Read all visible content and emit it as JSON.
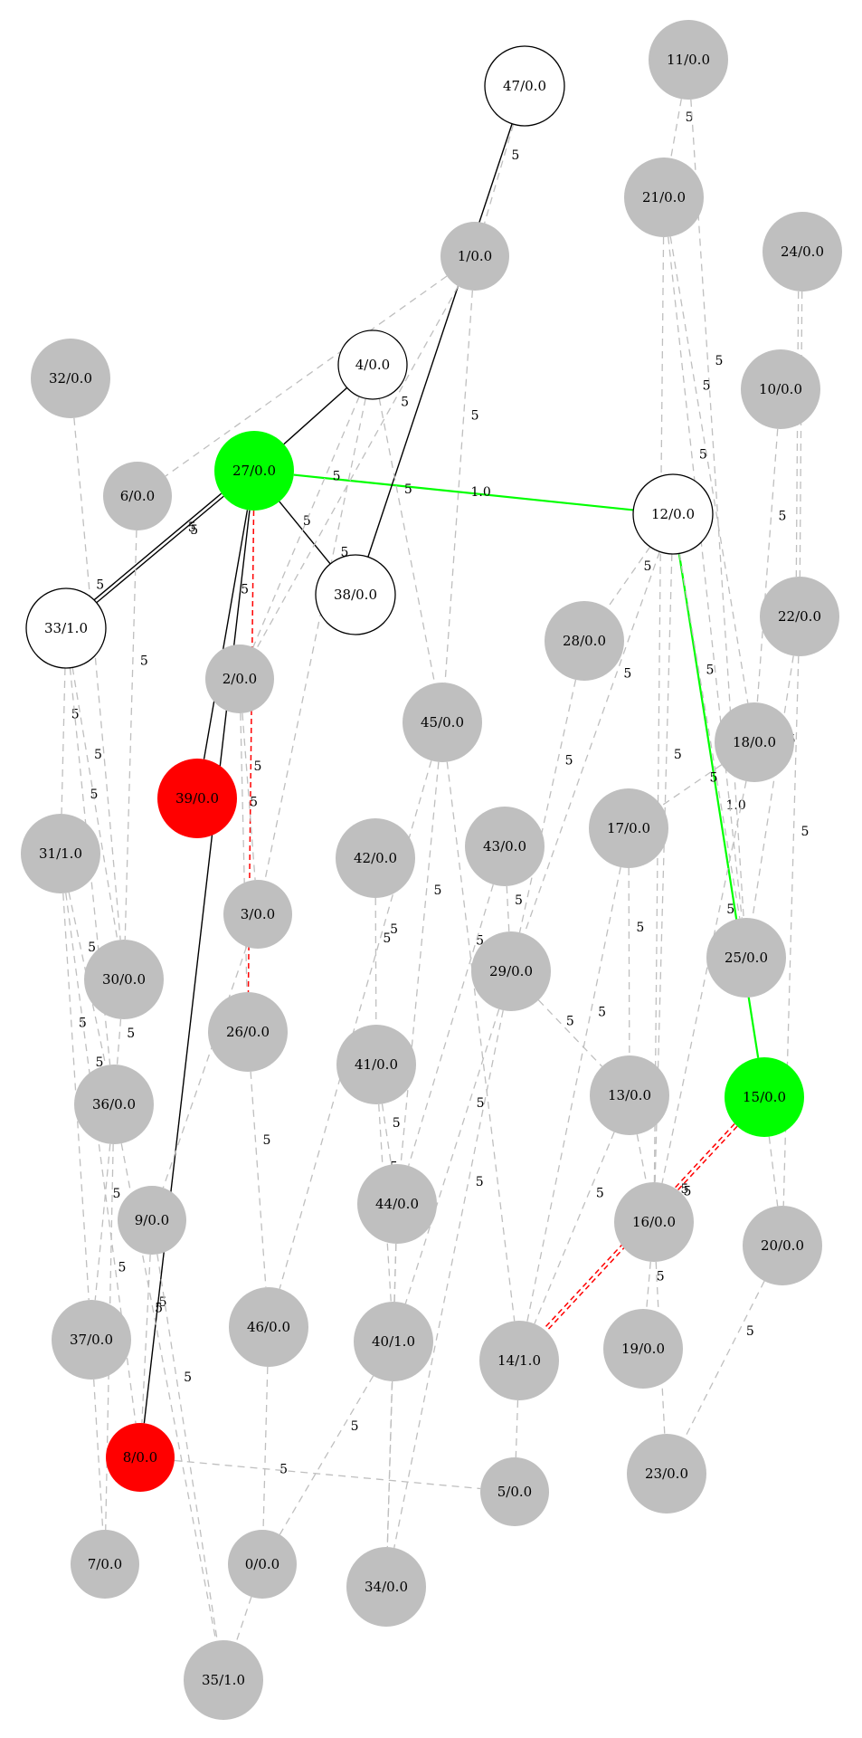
{
  "colors": {
    "gray": "#bfbfbf",
    "red": "#ff0000",
    "green": "#00ff00",
    "white": "#ffffff",
    "black": "#000000",
    "edge_gray": "#bfbfbf"
  },
  "nodes": [
    {
      "id": "0",
      "label": "0/0.0",
      "fill": "gray"
    },
    {
      "id": "1",
      "label": "1/0.0",
      "fill": "gray"
    },
    {
      "id": "2",
      "label": "2/0.0",
      "fill": "gray"
    },
    {
      "id": "3",
      "label": "3/0.0",
      "fill": "gray"
    },
    {
      "id": "4",
      "label": "4/0.0",
      "fill": "white"
    },
    {
      "id": "5",
      "label": "5/0.0",
      "fill": "gray"
    },
    {
      "id": "6",
      "label": "6/0.0",
      "fill": "gray"
    },
    {
      "id": "7",
      "label": "7/0.0",
      "fill": "gray"
    },
    {
      "id": "8",
      "label": "8/0.0",
      "fill": "red"
    },
    {
      "id": "9",
      "label": "9/0.0",
      "fill": "gray"
    },
    {
      "id": "10",
      "label": "10/0.0",
      "fill": "gray"
    },
    {
      "id": "11",
      "label": "11/0.0",
      "fill": "gray"
    },
    {
      "id": "12",
      "label": "12/0.0",
      "fill": "white"
    },
    {
      "id": "13",
      "label": "13/0.0",
      "fill": "gray"
    },
    {
      "id": "14",
      "label": "14/1.0",
      "fill": "gray"
    },
    {
      "id": "15",
      "label": "15/0.0",
      "fill": "green"
    },
    {
      "id": "16",
      "label": "16/0.0",
      "fill": "gray"
    },
    {
      "id": "17",
      "label": "17/0.0",
      "fill": "gray"
    },
    {
      "id": "18",
      "label": "18/0.0",
      "fill": "gray"
    },
    {
      "id": "19",
      "label": "19/0.0",
      "fill": "gray"
    },
    {
      "id": "20",
      "label": "20/0.0",
      "fill": "gray"
    },
    {
      "id": "21",
      "label": "21/0.0",
      "fill": "gray"
    },
    {
      "id": "22",
      "label": "22/0.0",
      "fill": "gray"
    },
    {
      "id": "23",
      "label": "23/0.0",
      "fill": "gray"
    },
    {
      "id": "24",
      "label": "24/0.0",
      "fill": "gray"
    },
    {
      "id": "25",
      "label": "25/0.0",
      "fill": "gray"
    },
    {
      "id": "26",
      "label": "26/0.0",
      "fill": "gray"
    },
    {
      "id": "27",
      "label": "27/0.0",
      "fill": "green"
    },
    {
      "id": "28",
      "label": "28/0.0",
      "fill": "gray"
    },
    {
      "id": "29",
      "label": "29/0.0",
      "fill": "gray"
    },
    {
      "id": "30",
      "label": "30/0.0",
      "fill": "gray"
    },
    {
      "id": "31",
      "label": "31/1.0",
      "fill": "gray"
    },
    {
      "id": "32",
      "label": "32/0.0",
      "fill": "gray"
    },
    {
      "id": "33",
      "label": "33/1.0",
      "fill": "white"
    },
    {
      "id": "34",
      "label": "34/0.0",
      "fill": "gray"
    },
    {
      "id": "35",
      "label": "35/1.0",
      "fill": "gray"
    },
    {
      "id": "36",
      "label": "36/0.0",
      "fill": "gray"
    },
    {
      "id": "37",
      "label": "37/0.0",
      "fill": "gray"
    },
    {
      "id": "38",
      "label": "38/0.0",
      "fill": "white"
    },
    {
      "id": "39",
      "label": "39/0.0",
      "fill": "red"
    },
    {
      "id": "40",
      "label": "40/1.0",
      "fill": "gray"
    },
    {
      "id": "41",
      "label": "41/0.0",
      "fill": "gray"
    },
    {
      "id": "42",
      "label": "42/0.0",
      "fill": "gray"
    },
    {
      "id": "43",
      "label": "43/0.0",
      "fill": "gray"
    },
    {
      "id": "44",
      "label": "44/0.0",
      "fill": "gray"
    },
    {
      "id": "45",
      "label": "45/0.0",
      "fill": "gray"
    },
    {
      "id": "46",
      "label": "46/0.0",
      "fill": "gray"
    },
    {
      "id": "47",
      "label": "47/0.0",
      "fill": "white"
    }
  ],
  "edges": [
    {
      "source": "27",
      "target": "12",
      "style": "green",
      "label": "1.0"
    },
    {
      "source": "12",
      "target": "15",
      "style": "green",
      "label": "1.0"
    },
    {
      "source": "27",
      "target": "4",
      "style": "black",
      "label": ""
    },
    {
      "source": "27",
      "target": "38",
      "style": "black",
      "label": "5"
    },
    {
      "source": "27",
      "target": "33",
      "style": "black",
      "label": "5"
    },
    {
      "source": "27",
      "target": "33",
      "style": "black",
      "label": "5"
    },
    {
      "source": "27",
      "target": "39",
      "style": "black",
      "label": "5"
    },
    {
      "source": "27",
      "target": "8",
      "style": "black",
      "label": "5"
    },
    {
      "source": "47",
      "target": "38",
      "style": "black",
      "label": "5"
    },
    {
      "source": "27",
      "target": "26",
      "style": "red",
      "label": "5"
    },
    {
      "source": "15",
      "target": "14",
      "style": "red",
      "label": "5"
    },
    {
      "source": "15",
      "target": "14",
      "style": "red",
      "label": "5"
    },
    {
      "source": "11",
      "target": "21",
      "style": "gray",
      "label": "5"
    },
    {
      "source": "11",
      "target": "25",
      "style": "gray",
      "label": "5"
    },
    {
      "source": "21",
      "target": "25",
      "style": "gray",
      "label": "5"
    },
    {
      "source": "21",
      "target": "18",
      "style": "gray",
      "label": "5"
    },
    {
      "source": "21",
      "target": "16",
      "style": "gray",
      "label": "5"
    },
    {
      "source": "24",
      "target": "22",
      "style": "gray",
      "label": "5"
    },
    {
      "source": "24",
      "target": "22",
      "style": "gray",
      "label": "5"
    },
    {
      "source": "10",
      "target": "18",
      "style": "gray",
      "label": "5"
    },
    {
      "source": "22",
      "target": "25",
      "style": "gray",
      "label": "5"
    },
    {
      "source": "22",
      "target": "20",
      "style": "gray",
      "label": "5"
    },
    {
      "source": "47",
      "target": "1",
      "style": "gray",
      "label": "5"
    },
    {
      "source": "1",
      "target": "6",
      "style": "gray",
      "label": "5"
    },
    {
      "source": "1",
      "target": "2",
      "style": "gray",
      "label": "5"
    },
    {
      "source": "1",
      "target": "45",
      "style": "gray",
      "label": "5"
    },
    {
      "source": "4",
      "target": "2",
      "style": "gray",
      "label": "5"
    },
    {
      "source": "4",
      "target": "3",
      "style": "gray",
      "label": "5"
    },
    {
      "source": "4",
      "target": "45",
      "style": "gray",
      "label": "5"
    },
    {
      "source": "32",
      "target": "30",
      "style": "gray",
      "label": "5"
    },
    {
      "source": "6",
      "target": "30",
      "style": "gray",
      "label": "5"
    },
    {
      "source": "33",
      "target": "31",
      "style": "gray",
      "label": "5"
    },
    {
      "source": "33",
      "target": "30",
      "style": "gray",
      "label": "5"
    },
    {
      "source": "33",
      "target": "36",
      "style": "gray",
      "label": "5"
    },
    {
      "source": "31",
      "target": "36",
      "style": "gray",
      "label": "5"
    },
    {
      "source": "31",
      "target": "37",
      "style": "gray",
      "label": "5"
    },
    {
      "source": "31",
      "target": "8",
      "style": "gray",
      "label": "5"
    },
    {
      "source": "30",
      "target": "36",
      "style": "gray",
      "label": "5"
    },
    {
      "source": "36",
      "target": "37",
      "style": "gray",
      "label": "5"
    },
    {
      "source": "36",
      "target": "7",
      "style": "gray",
      "label": "5"
    },
    {
      "source": "36",
      "target": "35",
      "style": "gray",
      "label": "5"
    },
    {
      "source": "9",
      "target": "8",
      "style": "gray",
      "label": "5"
    },
    {
      "source": "9",
      "target": "35",
      "style": "gray",
      "label": "5"
    },
    {
      "source": "2",
      "target": "3",
      "style": "gray",
      "label": "5"
    },
    {
      "source": "2",
      "target": "26",
      "style": "gray",
      "label": "5"
    },
    {
      "source": "3",
      "target": "9",
      "style": "gray",
      "label": "5"
    },
    {
      "source": "26",
      "target": "46",
      "style": "gray",
      "label": "5"
    },
    {
      "source": "46",
      "target": "0",
      "style": "gray",
      "label": ""
    },
    {
      "source": "0",
      "target": "35",
      "style": "gray",
      "label": ""
    },
    {
      "source": "8",
      "target": "5",
      "style": "gray",
      "label": "5"
    },
    {
      "source": "45",
      "target": "44",
      "style": "gray",
      "label": "5"
    },
    {
      "source": "45",
      "target": "46",
      "style": "gray",
      "label": "5"
    },
    {
      "source": "45",
      "target": "14",
      "style": "gray",
      "label": "5"
    },
    {
      "source": "42",
      "target": "41",
      "style": "gray",
      "label": "5"
    },
    {
      "source": "41",
      "target": "44",
      "style": "gray",
      "label": "5"
    },
    {
      "source": "41",
      "target": "40",
      "style": "gray",
      "label": "5"
    },
    {
      "source": "44",
      "target": "40",
      "style": "gray",
      "label": ""
    },
    {
      "source": "44",
      "target": "34",
      "style": "gray",
      "label": ""
    },
    {
      "source": "40",
      "target": "34",
      "style": "gray",
      "label": ""
    },
    {
      "source": "40",
      "target": "0",
      "style": "gray",
      "label": "5"
    },
    {
      "source": "43",
      "target": "29",
      "style": "gray",
      "label": "5"
    },
    {
      "source": "43",
      "target": "44",
      "style": "gray",
      "label": "5"
    },
    {
      "source": "28",
      "target": "29",
      "style": "gray",
      "label": "5"
    },
    {
      "source": "29",
      "target": "13",
      "style": "gray",
      "label": "5"
    },
    {
      "source": "29",
      "target": "34",
      "style": "gray",
      "label": "5"
    },
    {
      "source": "29",
      "target": "40",
      "style": "gray",
      "label": "5"
    },
    {
      "source": "12",
      "target": "28",
      "style": "gray",
      "label": "5"
    },
    {
      "source": "12",
      "target": "29",
      "style": "gray",
      "label": "5"
    },
    {
      "source": "12",
      "target": "16",
      "style": "gray",
      "label": "5"
    },
    {
      "source": "12",
      "target": "25",
      "style": "gray",
      "label": "5"
    },
    {
      "source": "17",
      "target": "13",
      "style": "gray",
      "label": "5"
    },
    {
      "source": "17",
      "target": "14",
      "style": "gray",
      "label": "5"
    },
    {
      "source": "18",
      "target": "17",
      "style": "gray",
      "label": "5"
    },
    {
      "source": "18",
      "target": "16",
      "style": "gray",
      "label": "5"
    },
    {
      "source": "13",
      "target": "16",
      "style": "gray",
      "label": ""
    },
    {
      "source": "13",
      "target": "14",
      "style": "gray",
      "label": "5"
    },
    {
      "source": "16",
      "target": "19",
      "style": "gray",
      "label": "5"
    },
    {
      "source": "16",
      "target": "23",
      "style": "gray",
      "label": ""
    },
    {
      "source": "15",
      "target": "20",
      "style": "gray",
      "label": ""
    },
    {
      "source": "20",
      "target": "23",
      "style": "gray",
      "label": "5"
    },
    {
      "source": "14",
      "target": "5",
      "style": "gray",
      "label": ""
    },
    {
      "source": "37",
      "target": "7",
      "style": "gray",
      "label": ""
    }
  ]
}
